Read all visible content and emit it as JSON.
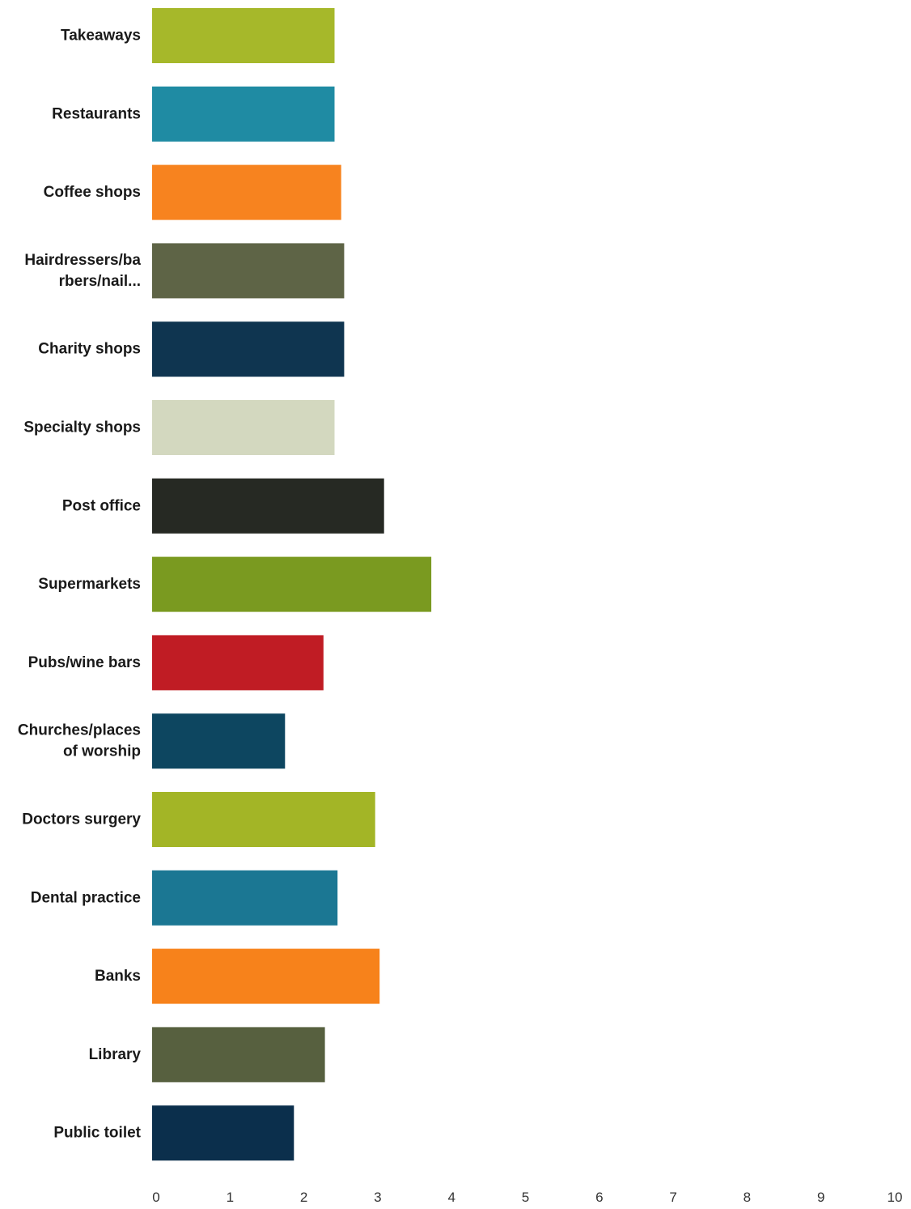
{
  "chart_data": {
    "type": "bar",
    "orientation": "horizontal",
    "title": "",
    "xlabel": "",
    "ylabel": "",
    "xlim": [
      0,
      10
    ],
    "grid": false,
    "legend": "none",
    "x_ticks": [
      "0",
      "1",
      "2",
      "3",
      "4",
      "5",
      "6",
      "7",
      "8",
      "9",
      "10"
    ],
    "categories": [
      [
        "Takeaways"
      ],
      [
        "Restaurants"
      ],
      [
        "Coffee shops"
      ],
      [
        "Hairdressers/ba",
        "rbers/nail..."
      ],
      [
        "Charity shops"
      ],
      [
        "Specialty shops"
      ],
      [
        "Post office"
      ],
      [
        "Supermarkets"
      ],
      [
        "Pubs/wine bars"
      ],
      [
        "Churches/places",
        "of worship"
      ],
      [
        "Doctors surgery"
      ],
      [
        "Dental practice"
      ],
      [
        "Banks"
      ],
      [
        "Library"
      ],
      [
        "Public toilet"
      ]
    ],
    "values": [
      2.47,
      2.47,
      2.56,
      2.6,
      2.6,
      2.47,
      3.14,
      3.78,
      2.32,
      1.8,
      3.02,
      2.51,
      3.08,
      2.34,
      1.92
    ],
    "colors": [
      "#a6b82a",
      "#1f8ba3",
      "#f7831f",
      "#5e6446",
      "#0f3550",
      "#d3d8bf",
      "#262923",
      "#7a9a20",
      "#c01c24",
      "#0d4660",
      "#a3b526",
      "#1b7793",
      "#f7821b",
      "#57603f",
      "#0b2f4c"
    ]
  }
}
